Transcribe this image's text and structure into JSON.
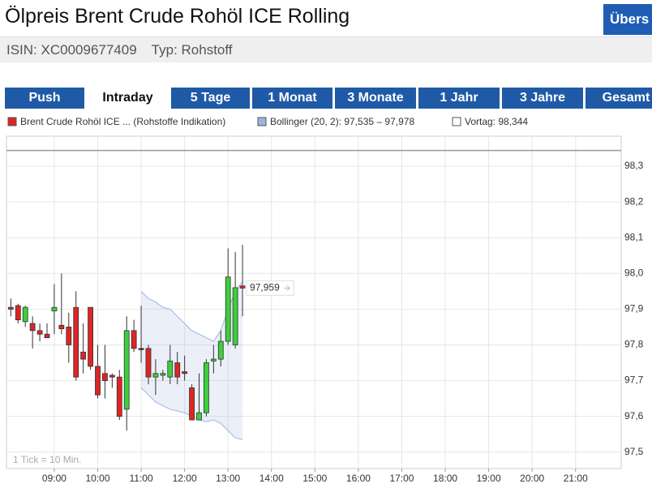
{
  "header": {
    "title": "Ölpreis Brent Crude Rohöl ICE Rolling",
    "button": "Übers",
    "isin": "ISIN: XC0009677409",
    "typ": "Typ: Rohstoff"
  },
  "tabs": [
    "Push",
    "Intraday",
    "5 Tage",
    "1 Monat",
    "3 Monate",
    "1 Jahr",
    "3 Jahre",
    "Gesamt"
  ],
  "active_tab": "Intraday",
  "chart_data": {
    "type": "candlestick",
    "legend": [
      "Brent Crude Rohöl ICE ... (Rohstoffe Indikation)",
      "Bollinger (20, 2): 97,535 – 97,978",
      "Vortag: 98,344"
    ],
    "note": "1 Tick = 10 Min.",
    "xlim": [
      474,
      1323
    ],
    "ylim": [
      97.454,
      98.384
    ],
    "xticks": [
      {
        "value": 540,
        "label": "09:00"
      },
      {
        "value": 600,
        "label": "10:00"
      },
      {
        "value": 660,
        "label": "11:00"
      },
      {
        "value": 720,
        "label": "12:00"
      },
      {
        "value": 780,
        "label": "13:00"
      },
      {
        "value": 840,
        "label": "14:00"
      },
      {
        "value": 900,
        "label": "15:00"
      },
      {
        "value": 960,
        "label": "16:00"
      },
      {
        "value": 1020,
        "label": "17:00"
      },
      {
        "value": 1080,
        "label": "18:00"
      },
      {
        "value": 1140,
        "label": "19:00"
      },
      {
        "value": 1200,
        "label": "20:00"
      },
      {
        "value": 1260,
        "label": "21:00"
      }
    ],
    "yticks": [
      {
        "value": 97.5,
        "label": "97,5"
      },
      {
        "value": 97.6,
        "label": "97,6"
      },
      {
        "value": 97.7,
        "label": "97,7"
      },
      {
        "value": 97.8,
        "label": "97,8"
      },
      {
        "value": 97.9,
        "label": "97,9"
      },
      {
        "value": 98.0,
        "label": "98,0"
      },
      {
        "value": 98.1,
        "label": "98,1"
      },
      {
        "value": 98.2,
        "label": "98,2"
      },
      {
        "value": 98.3,
        "label": "98,3"
      }
    ],
    "grid": true,
    "up_color": "#3ccf3c",
    "down_color": "#dd2525",
    "flat_color": "#222222",
    "candles": {
      "x": [
        480,
        490,
        500,
        510,
        520,
        530,
        540,
        550,
        560,
        570,
        580,
        590,
        600,
        610,
        620,
        630,
        640,
        650,
        660,
        670,
        680,
        690,
        700,
        710,
        720,
        730,
        740,
        750,
        760,
        770,
        780,
        790,
        800
      ],
      "open": [
        97.905,
        97.91,
        97.865,
        97.86,
        97.84,
        97.83,
        97.895,
        97.855,
        97.85,
        97.905,
        97.78,
        97.905,
        97.74,
        97.72,
        97.715,
        97.71,
        97.62,
        97.84,
        97.79,
        97.79,
        97.71,
        97.715,
        97.71,
        97.75,
        97.725,
        97.68,
        97.59,
        97.61,
        97.755,
        97.76,
        97.81,
        97.8,
        97.965
      ],
      "high": [
        97.93,
        97.915,
        97.91,
        97.88,
        97.86,
        97.86,
        97.97,
        98.0,
        97.89,
        97.95,
        97.86,
        97.905,
        97.8,
        97.8,
        97.72,
        97.73,
        97.88,
        97.87,
        97.91,
        97.8,
        97.76,
        97.73,
        97.8,
        97.78,
        97.77,
        97.69,
        97.72,
        97.76,
        97.8,
        97.84,
        98.07,
        98.06,
        98.08
      ],
      "low": [
        97.88,
        97.86,
        97.85,
        97.79,
        97.81,
        97.82,
        97.83,
        97.83,
        97.75,
        97.7,
        97.72,
        97.73,
        97.65,
        97.65,
        97.68,
        97.59,
        97.56,
        97.78,
        97.75,
        97.69,
        97.66,
        97.7,
        97.69,
        97.69,
        97.7,
        97.59,
        97.59,
        97.6,
        97.72,
        97.74,
        97.8,
        97.79,
        97.88
      ],
      "close": [
        97.9,
        97.87,
        97.905,
        97.84,
        97.83,
        97.82,
        97.905,
        97.845,
        97.8,
        97.71,
        97.76,
        97.74,
        97.66,
        97.7,
        97.71,
        97.6,
        97.84,
        97.79,
        97.79,
        97.71,
        97.72,
        97.72,
        97.755,
        97.71,
        97.72,
        97.59,
        97.61,
        97.75,
        97.76,
        97.81,
        97.99,
        97.96,
        97.959
      ]
    },
    "bollinger": {
      "color": "#9fb4e0",
      "x": [
        660,
        670,
        680,
        690,
        700,
        710,
        720,
        730,
        740,
        750,
        760,
        770,
        780,
        790,
        800
      ],
      "upper": [
        97.95,
        97.93,
        97.92,
        97.905,
        97.9,
        97.88,
        97.86,
        97.84,
        97.83,
        97.82,
        97.81,
        97.84,
        97.9,
        97.95,
        97.978
      ],
      "lower": [
        97.68,
        97.66,
        97.64,
        97.63,
        97.62,
        97.615,
        97.61,
        97.6,
        97.59,
        97.585,
        97.59,
        97.58,
        97.56,
        97.54,
        97.535
      ]
    },
    "previous_close": 98.344,
    "last_price": {
      "value": 97.959,
      "label": "97,959"
    }
  }
}
